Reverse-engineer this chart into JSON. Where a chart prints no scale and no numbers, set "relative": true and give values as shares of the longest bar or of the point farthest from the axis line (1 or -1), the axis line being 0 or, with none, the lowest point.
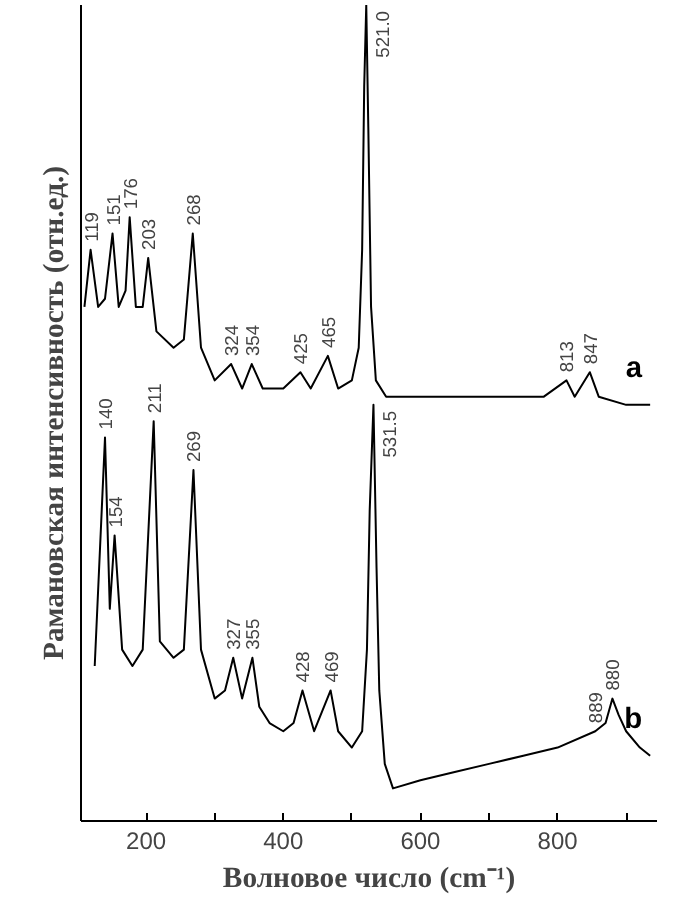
{
  "chart_data": {
    "type": "line",
    "relative": true,
    "xlabel": "Волновое число (cm⁻¹)",
    "ylabel": "Рамановская интенсивность (отн.ед.)",
    "xlim": [
      105,
      945
    ],
    "xticks": [
      200,
      {
        "value": 300,
        "label": null
      },
      400,
      {
        "value": 500,
        "label": null
      },
      600,
      {
        "value": 700,
        "label": null
      },
      800,
      {
        "value": 900,
        "label": null
      }
    ],
    "tick_labels": "x",
    "grid": false,
    "series": [
      {
        "name": "a",
        "color": "#000000",
        "x": [
          110,
          119,
          130,
          140,
          151,
          160,
          170,
          176,
          185,
          195,
          203,
          215,
          240,
          255,
          268,
          280,
          300,
          324,
          340,
          354,
          370,
          400,
          425,
          440,
          465,
          480,
          500,
          510,
          515,
          518,
          521,
          524,
          528,
          535,
          550,
          600,
          700,
          780,
          813,
          825,
          847,
          860,
          900,
          935
        ],
        "values": [
          0.63,
          0.7,
          0.63,
          0.64,
          0.72,
          0.63,
          0.65,
          0.74,
          0.63,
          0.63,
          0.69,
          0.6,
          0.58,
          0.59,
          0.72,
          0.58,
          0.54,
          0.56,
          0.53,
          0.56,
          0.53,
          0.53,
          0.55,
          0.53,
          0.57,
          0.53,
          0.54,
          0.58,
          0.7,
          0.9,
          1.0,
          0.85,
          0.63,
          0.54,
          0.52,
          0.52,
          0.52,
          0.52,
          0.54,
          0.52,
          0.55,
          0.52,
          0.51,
          0.51
        ]
      },
      {
        "name": "b",
        "color": "#000000",
        "x": [
          125,
          140,
          147,
          154,
          165,
          180,
          195,
          211,
          220,
          240,
          255,
          269,
          280,
          300,
          315,
          327,
          340,
          355,
          365,
          380,
          400,
          415,
          428,
          445,
          469,
          480,
          500,
          515,
          522,
          526,
          531.5,
          536,
          540,
          548,
          560,
          600,
          650,
          700,
          750,
          800,
          855,
          870,
          880,
          889,
          900,
          920,
          935
        ],
        "values": [
          0.19,
          0.47,
          0.26,
          0.35,
          0.21,
          0.19,
          0.21,
          0.49,
          0.22,
          0.2,
          0.21,
          0.43,
          0.21,
          0.15,
          0.16,
          0.2,
          0.15,
          0.2,
          0.14,
          0.12,
          0.11,
          0.12,
          0.16,
          0.11,
          0.16,
          0.11,
          0.09,
          0.11,
          0.21,
          0.38,
          0.51,
          0.31,
          0.16,
          0.07,
          0.04,
          0.05,
          0.06,
          0.07,
          0.08,
          0.09,
          0.11,
          0.12,
          0.15,
          0.13,
          0.11,
          0.09,
          0.08
        ]
      }
    ],
    "annotations": [
      {
        "text": "119",
        "x": 119,
        "y": 0.7
      },
      {
        "text": "151",
        "x": 151,
        "y": 0.72
      },
      {
        "text": "176",
        "x": 176,
        "y": 0.74
      },
      {
        "text": "203",
        "x": 203,
        "y": 0.69
      },
      {
        "text": "268",
        "x": 268,
        "y": 0.72
      },
      {
        "text": "324",
        "x": 324,
        "y": 0.56
      },
      {
        "text": "354",
        "x": 354,
        "y": 0.56
      },
      {
        "text": "425",
        "x": 425,
        "y": 0.55
      },
      {
        "text": "465",
        "x": 465,
        "y": 0.57
      },
      {
        "text": "521.0",
        "x": 521,
        "y": 1.0
      },
      {
        "text": "813",
        "x": 813,
        "y": 0.54
      },
      {
        "text": "847",
        "x": 847,
        "y": 0.55
      },
      {
        "text": "140",
        "x": 140,
        "y": 0.47
      },
      {
        "text": "154",
        "x": 154,
        "y": 0.35
      },
      {
        "text": "211",
        "x": 211,
        "y": 0.49
      },
      {
        "text": "269",
        "x": 269,
        "y": 0.43
      },
      {
        "text": "327",
        "x": 327,
        "y": 0.2
      },
      {
        "text": "355",
        "x": 355,
        "y": 0.2
      },
      {
        "text": "428",
        "x": 428,
        "y": 0.16
      },
      {
        "text": "469",
        "x": 469,
        "y": 0.16
      },
      {
        "text": "531.5",
        "x": 531.5,
        "y": 0.51
      },
      {
        "text": "889",
        "x": 855,
        "y": 0.11
      },
      {
        "text": "880",
        "x": 880,
        "y": 0.15
      }
    ]
  }
}
